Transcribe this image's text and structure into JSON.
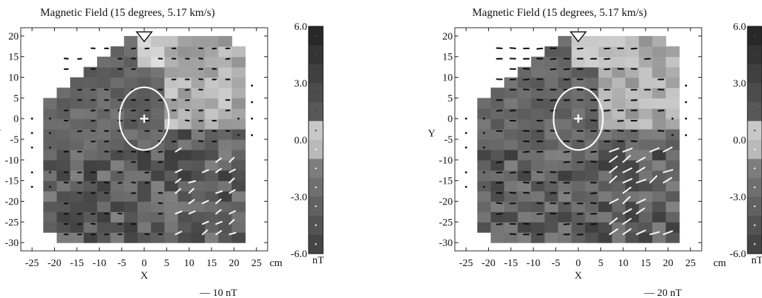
{
  "panels": [
    {
      "title": "Magnetic Field (15 degrees, 5.17 km/s)",
      "ylabel": "Y",
      "xlabel": "X",
      "x_unit": "cm",
      "x_ticks": [
        "-25",
        "-20",
        "-15",
        "-10",
        "-5",
        "0",
        "5",
        "10",
        "15",
        "20",
        "25"
      ],
      "y_ticks": [
        "20",
        "15",
        "10",
        "5",
        "0",
        "-5",
        "-10",
        "-15",
        "-20",
        "-25",
        "-30"
      ],
      "colorbar_ticks": [
        "6.0",
        "3.0",
        "0.0",
        "-3.0",
        "-6.0"
      ],
      "colorbar_unit": "nT",
      "scale_label": "— 10 nT"
    },
    {
      "title": "Magnetic Field (15 degrees, 5.17 km/s)",
      "ylabel": "Y",
      "xlabel": "X",
      "x_unit": "cm",
      "x_ticks": [
        "-25",
        "-20",
        "-15",
        "-10",
        "-5",
        "0",
        "5",
        "10",
        "15",
        "20",
        "25"
      ],
      "y_ticks": [
        "20",
        "15",
        "10",
        "5",
        "0",
        "-5",
        "-10",
        "-15",
        "-20",
        "-25",
        "-30"
      ],
      "colorbar_ticks": [
        "6.0",
        "3.0",
        "0.0",
        "-3.0",
        "-6.0"
      ],
      "colorbar_unit": "nT",
      "scale_label": "— 20 nT"
    }
  ],
  "chart_data": [
    {
      "type": "heatmap",
      "title": "Magnetic Field (15 degrees, 5.17 km/s)",
      "xlabel": "X",
      "ylabel": "Y",
      "x_unit": "cm",
      "xlim": [
        -27.5,
        27.5
      ],
      "ylim": [
        -32,
        22
      ],
      "colorbar": {
        "range": [
          -6.0,
          6.0
        ],
        "unit": "nT"
      },
      "vector_scale": "10 nT",
      "circle": {
        "center": [
          0,
          0
        ],
        "radius": 5.5
      },
      "marker": {
        "center": [
          0,
          0
        ],
        "shape": "cross"
      },
      "triangle_marker": {
        "x": 0,
        "y": 21
      },
      "grayscale": "dark = high, light = low"
    },
    {
      "type": "heatmap",
      "title": "Magnetic Field (15 degrees, 5.17 km/s)",
      "xlabel": "X",
      "ylabel": "Y",
      "x_unit": "cm",
      "xlim": [
        -27.5,
        27.5
      ],
      "ylim": [
        -32,
        22
      ],
      "colorbar": {
        "range": [
          -6.0,
          6.0
        ],
        "unit": "nT"
      },
      "vector_scale": "20 nT",
      "circle": {
        "center": [
          0,
          0
        ],
        "radius": 5.5
      },
      "marker": {
        "center": [
          0,
          0
        ],
        "shape": "cross"
      },
      "triangle_marker": {
        "x": 0,
        "y": 21
      },
      "grayscale": "dark = high, light = low"
    }
  ]
}
